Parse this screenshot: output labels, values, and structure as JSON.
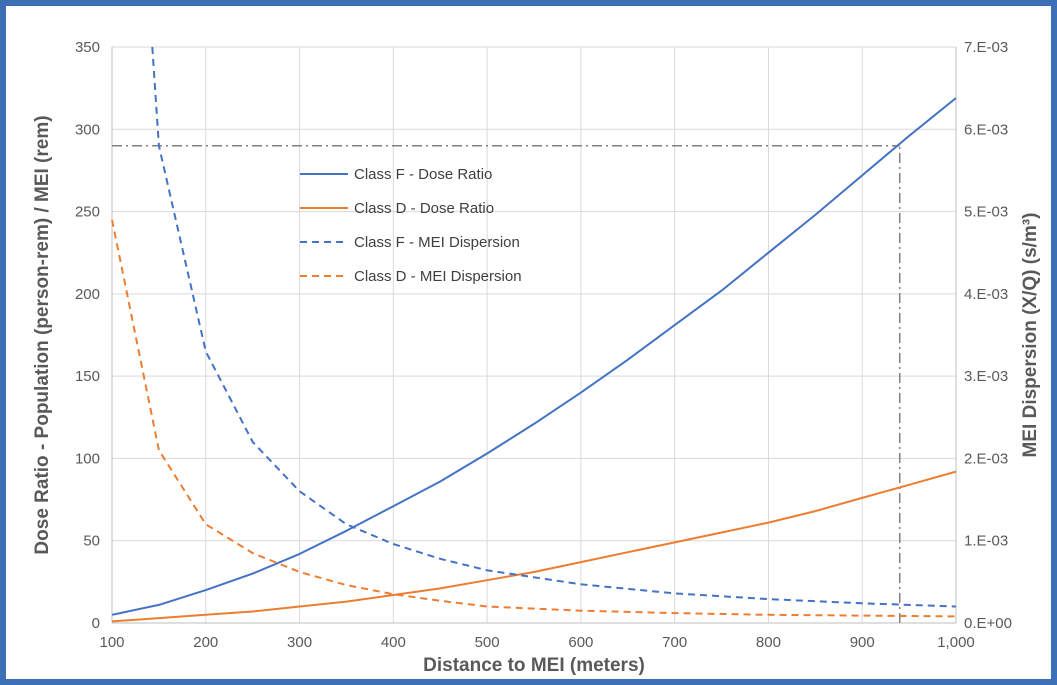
{
  "chart_data": {
    "type": "line",
    "xlabel": "Distance to MEI (meters)",
    "ylabel": "Dose Ratio - Population (person-rem) / MEI (rem)",
    "y2label": "MEI Dispersion (X/Q) (s/m³)",
    "xlim": [
      100,
      1000
    ],
    "ylim": [
      0,
      350
    ],
    "y2lim": [
      0,
      0.007
    ],
    "x_ticks": [
      100,
      200,
      300,
      400,
      500,
      600,
      700,
      800,
      900,
      1000
    ],
    "x_tick_labels": [
      "100",
      "200",
      "300",
      "400",
      "500",
      "600",
      "700",
      "800",
      "900",
      "1,000"
    ],
    "y_ticks": [
      0,
      50,
      100,
      150,
      200,
      250,
      300,
      350
    ],
    "y_tick_labels": [
      "0",
      "50",
      "100",
      "150",
      "200",
      "250",
      "300",
      "350"
    ],
    "y2_ticks": [
      0,
      0.001,
      0.002,
      0.003,
      0.004,
      0.005,
      0.006,
      0.007
    ],
    "y2_tick_labels": [
      "0.E+00",
      "1.E-03",
      "2.E-03",
      "3.E-03",
      "4.E-03",
      "5.E-03",
      "6.E-03",
      "7.E-03"
    ],
    "grid": true,
    "legend_position": "upper-center",
    "series": [
      {
        "name": "Class F - Dose Ratio",
        "axis": "left",
        "style": "solid",
        "color": "#4472c4",
        "x": [
          100,
          150,
          200,
          250,
          300,
          350,
          400,
          450,
          500,
          550,
          600,
          650,
          700,
          750,
          800,
          850,
          900,
          950,
          1000
        ],
        "y": [
          5,
          11,
          20,
          30,
          42,
          56,
          71,
          86,
          103,
          121,
          140,
          160,
          181,
          202,
          225,
          248,
          272,
          296,
          319
        ]
      },
      {
        "name": "Class D - Dose Ratio",
        "axis": "left",
        "style": "solid",
        "color": "#ed7d31",
        "x": [
          100,
          150,
          200,
          250,
          300,
          350,
          400,
          450,
          500,
          550,
          600,
          650,
          700,
          750,
          800,
          850,
          900,
          950,
          1000
        ],
        "y": [
          1,
          3,
          5,
          7,
          10,
          13,
          17,
          21,
          26,
          31,
          37,
          43,
          49,
          55,
          61,
          68,
          76,
          84,
          92
        ]
      },
      {
        "name": "Class F - MEI Dispersion",
        "axis": "right",
        "style": "dashed",
        "color": "#4472c4",
        "x": [
          143,
          150,
          200,
          250,
          300,
          350,
          400,
          450,
          500,
          600,
          700,
          800,
          900,
          1000
        ],
        "y": [
          0.007,
          0.0058,
          0.0033,
          0.0022,
          0.0016,
          0.0012,
          0.00096,
          0.00078,
          0.00064,
          0.00047,
          0.00036,
          0.00029,
          0.00024,
          0.0002
        ]
      },
      {
        "name": "Class D - MEI Dispersion",
        "axis": "right",
        "style": "dashed",
        "color": "#ed7d31",
        "x": [
          100,
          150,
          200,
          250,
          300,
          350,
          400,
          450,
          500,
          600,
          700,
          800,
          900,
          1000
        ],
        "y": [
          0.0049,
          0.0021,
          0.0012,
          0.00085,
          0.00062,
          0.00046,
          0.00035,
          0.00027,
          0.0002,
          0.00015,
          0.00012,
          0.0001,
          9e-05,
          8e-05
        ]
      }
    ],
    "reference_lines": [
      {
        "type": "horizontal",
        "axis": "left",
        "y": 290,
        "x_from": 100,
        "x_to": 940,
        "style": "dash-dot",
        "color": "#808080"
      },
      {
        "type": "vertical",
        "x": 940,
        "y_from": 0,
        "y_to": 290,
        "style": "dash-dot",
        "color": "#808080"
      }
    ]
  }
}
